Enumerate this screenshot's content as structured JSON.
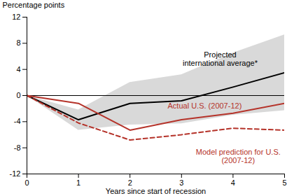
{
  "chart_data": {
    "type": "line",
    "x_label": "Years since start of recession",
    "y_label": "Percentage points",
    "x": [
      0,
      1,
      2,
      3,
      4,
      5
    ],
    "xlim": [
      0,
      5
    ],
    "xticks": [
      0,
      1,
      2,
      3,
      4,
      5
    ],
    "ylim": [
      -12,
      12
    ],
    "yticks": [
      -12,
      -8,
      -4,
      0,
      4,
      8,
      12
    ],
    "grid": false,
    "band": {
      "lower": [
        0,
        -5.3,
        -4.5,
        -4.3,
        -3.0,
        -2.3
      ],
      "upper": [
        0,
        -2.2,
        2.0,
        3.2,
        6.5,
        9.3
      ],
      "color": "#d9d9d9"
    },
    "series": [
      {
        "name": "Projected\ninternational average*",
        "color": "#000000",
        "line_style": "solid",
        "values": [
          0,
          -3.7,
          -1.2,
          -0.8,
          1.3,
          3.5
        ]
      },
      {
        "name": "Actual U.S. (2007-12)",
        "color": "#b5332a",
        "line_style": "solid",
        "values": [
          0,
          -1.2,
          -5.3,
          -3.7,
          -2.7,
          -1.2
        ]
      },
      {
        "name": "Model prediction for U.S.\n(2007-12)",
        "color": "#b5332a",
        "line_style": "dashed",
        "values": [
          0,
          -4.2,
          -6.8,
          -6.0,
          -5.0,
          -5.3
        ]
      }
    ]
  }
}
